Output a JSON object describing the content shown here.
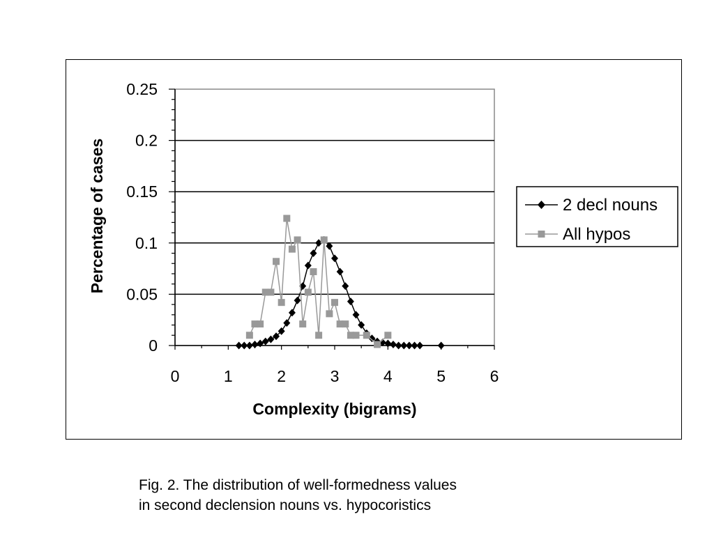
{
  "chart_data": {
    "type": "line",
    "xlabel": "Complexity (bigrams)",
    "ylabel": "Percentage of cases",
    "xlim": [
      0,
      6
    ],
    "ylim": [
      0,
      0.25
    ],
    "xticks": [
      "0",
      "1",
      "2",
      "3",
      "4",
      "5",
      "6"
    ],
    "yticks": [
      "0",
      "0.05",
      "0.1",
      "0.15",
      "0.2",
      "0.25"
    ],
    "grid": "horizontal major lines",
    "legend": "right",
    "series": [
      {
        "name": "2 decl nouns",
        "color": "#000000",
        "marker": "diamond",
        "x": [
          1.2,
          1.3,
          1.4,
          1.5,
          1.6,
          1.7,
          1.8,
          1.9,
          2.0,
          2.1,
          2.2,
          2.3,
          2.4,
          2.5,
          2.6,
          2.7,
          2.8,
          2.9,
          3.0,
          3.1,
          3.2,
          3.3,
          3.4,
          3.5,
          3.6,
          3.7,
          3.8,
          3.9,
          4.0,
          4.1,
          4.2,
          4.3,
          4.4,
          4.5,
          4.6,
          5.0
        ],
        "y": [
          0,
          0,
          0,
          0.001,
          0.002,
          0.004,
          0.006,
          0.009,
          0.014,
          0.022,
          0.032,
          0.044,
          0.058,
          0.078,
          0.09,
          0.1,
          0.103,
          0.097,
          0.085,
          0.072,
          0.058,
          0.043,
          0.03,
          0.02,
          0.012,
          0.007,
          0.004,
          0.003,
          0.002,
          0.001,
          0,
          0,
          0,
          0,
          0,
          0
        ]
      },
      {
        "name": "All hypos",
        "color": "#999999",
        "marker": "square",
        "x": [
          1.4,
          1.5,
          1.6,
          1.7,
          1.8,
          1.9,
          2.0,
          2.1,
          2.2,
          2.3,
          2.4,
          2.5,
          2.6,
          2.7,
          2.8,
          2.9,
          3.0,
          3.1,
          3.2,
          3.3,
          3.4,
          3.6,
          3.8,
          4.0
        ],
        "y": [
          0.01,
          0.021,
          0.021,
          0.052,
          0.052,
          0.082,
          0.042,
          0.124,
          0.094,
          0.103,
          0.021,
          0.052,
          0.072,
          0.01,
          0.103,
          0.031,
          0.042,
          0.021,
          0.021,
          0.01,
          0.01,
          0.01,
          0.001,
          0.01
        ]
      }
    ]
  },
  "caption": {
    "line1": "Fig. 2. The distribution of well-formedness values",
    "line2": "in second declension nouns vs. hypocoristics"
  }
}
